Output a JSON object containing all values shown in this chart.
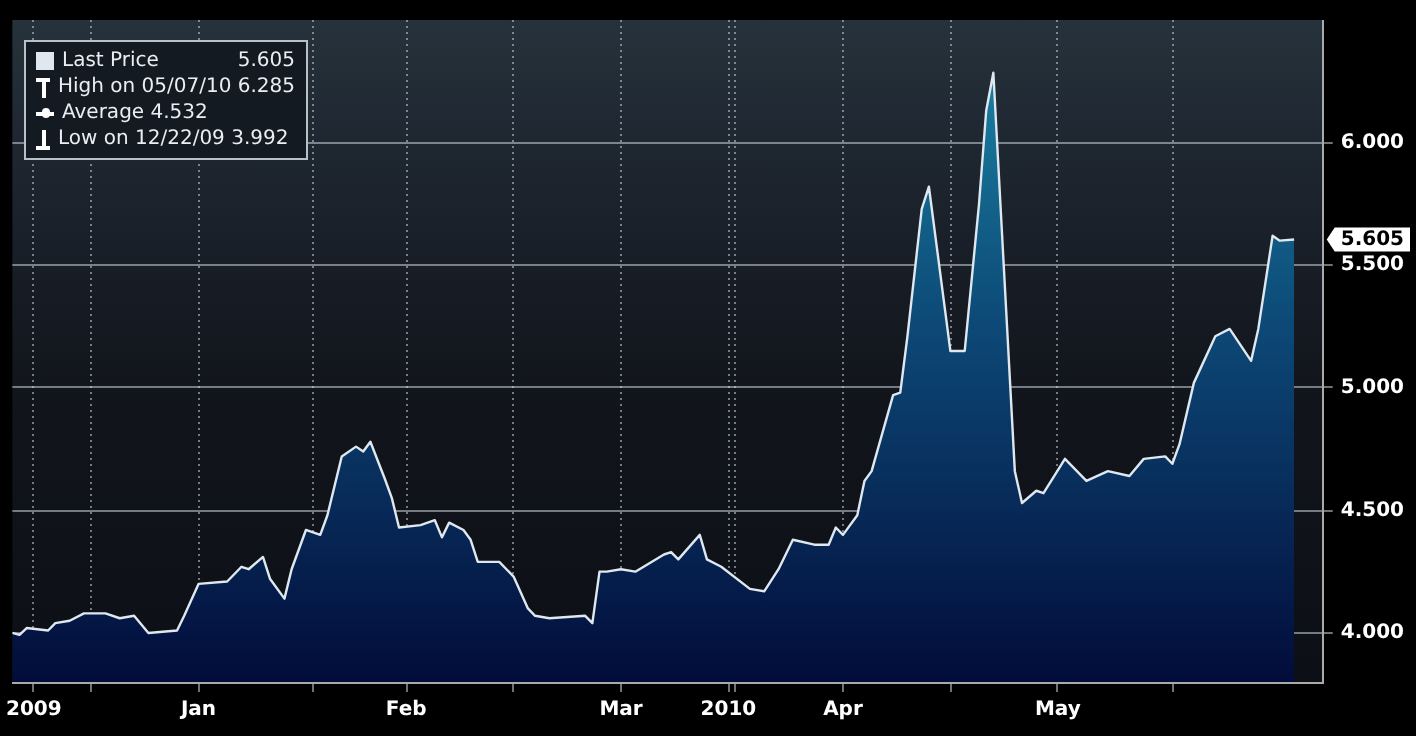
{
  "chart_data": {
    "type": "area",
    "x": [
      "2009-12-21",
      "2009-12-22",
      "2009-12-23",
      "2009-12-26",
      "2009-12-27",
      "2009-12-29",
      "2009-12-31",
      "2010-01-03",
      "2010-01-05",
      "2010-01-07",
      "2010-01-09",
      "2010-01-13",
      "2010-01-14",
      "2010-01-16",
      "2010-01-20",
      "2010-01-22",
      "2010-01-23",
      "2010-01-25",
      "2010-01-26",
      "2010-01-28",
      "2010-01-29",
      "2010-01-31",
      "2010-02-02",
      "2010-02-03",
      "2010-02-05",
      "2010-02-07",
      "2010-02-08",
      "2010-02-09",
      "2010-02-11",
      "2010-02-12",
      "2010-02-13",
      "2010-02-16",
      "2010-02-18",
      "2010-02-19",
      "2010-02-20",
      "2010-02-22",
      "2010-02-23",
      "2010-02-24",
      "2010-02-27",
      "2010-03-01",
      "2010-03-03",
      "2010-03-04",
      "2010-03-06",
      "2010-03-11",
      "2010-03-12",
      "2010-03-13",
      "2010-03-14",
      "2010-03-16",
      "2010-03-18",
      "2010-03-22",
      "2010-03-23",
      "2010-03-24",
      "2010-03-27",
      "2010-03-28",
      "2010-03-30",
      "2010-04-03",
      "2010-04-05",
      "2010-04-07",
      "2010-04-09",
      "2010-04-12",
      "2010-04-14",
      "2010-04-15",
      "2010-04-16",
      "2010-04-18",
      "2010-04-19",
      "2010-04-20",
      "2010-04-23",
      "2010-04-24",
      "2010-04-25",
      "2010-04-27",
      "2010-04-28",
      "2010-05-01",
      "2010-05-03",
      "2010-05-05",
      "2010-05-06",
      "2010-05-07",
      "2010-05-10",
      "2010-05-11",
      "2010-05-13",
      "2010-05-14",
      "2010-05-17",
      "2010-05-20",
      "2010-05-23",
      "2010-05-26",
      "2010-05-28",
      "2010-05-31",
      "2010-06-01",
      "2010-06-02",
      "2010-06-04",
      "2010-06-07",
      "2010-06-09",
      "2010-06-12",
      "2010-06-13",
      "2010-06-15",
      "2010-06-16",
      "2010-06-18"
    ],
    "series": [
      {
        "name": "Last Price",
        "color": "#dfe8ee",
        "values": [
          4.0,
          3.992,
          4.02,
          4.01,
          4.04,
          4.05,
          4.08,
          4.08,
          4.06,
          4.07,
          4.0,
          4.01,
          4.07,
          4.2,
          4.21,
          4.27,
          4.26,
          4.31,
          4.22,
          4.14,
          4.26,
          4.42,
          4.4,
          4.48,
          4.72,
          4.76,
          4.74,
          4.78,
          4.63,
          4.55,
          4.43,
          4.44,
          4.46,
          4.39,
          4.45,
          4.42,
          4.38,
          4.29,
          4.29,
          4.23,
          4.1,
          4.07,
          4.06,
          4.07,
          4.04,
          4.25,
          4.25,
          4.26,
          4.25,
          4.32,
          4.33,
          4.3,
          4.4,
          4.3,
          4.27,
          4.18,
          4.17,
          4.26,
          4.38,
          4.36,
          4.36,
          4.43,
          4.4,
          4.48,
          4.62,
          4.66,
          4.97,
          4.98,
          5.21,
          5.73,
          5.82,
          5.15,
          5.15,
          5.75,
          6.13,
          6.285,
          4.66,
          4.53,
          4.58,
          4.57,
          4.71,
          4.62,
          4.66,
          4.64,
          4.71,
          4.72,
          4.69,
          4.77,
          5.02,
          5.21,
          5.24,
          5.11,
          5.24,
          5.62,
          5.6,
          5.605
        ]
      }
    ],
    "xlim": [
      "2009-12-21",
      "2010-06-22"
    ],
    "xticks": [
      {
        "value": "2009-12-24",
        "label": "2009"
      },
      {
        "value": "2010-01-01",
        "label": null
      },
      {
        "value": "2010-01-16",
        "label": "Jan"
      },
      {
        "value": "2010-02-01",
        "label": null
      },
      {
        "value": "2010-02-14",
        "label": "Feb"
      },
      {
        "value": "2010-03-01",
        "label": null
      },
      {
        "value": "2010-03-16",
        "label": "Mar"
      },
      {
        "value": "2010-03-31",
        "label": "2010"
      },
      {
        "value": "2010-04-01",
        "label": null
      },
      {
        "value": "2010-04-16",
        "label": "Apr"
      },
      {
        "value": "2010-05-01",
        "label": null
      },
      {
        "value": "2010-05-16",
        "label": "May"
      },
      {
        "value": "2010-06-01",
        "label": null
      }
    ],
    "ylim": [
      3.8,
      6.5
    ],
    "yticks": [
      {
        "value": 4,
        "label": "4.000"
      },
      {
        "value": 4.5,
        "label": "4.500"
      },
      {
        "value": 5,
        "label": "5.000"
      },
      {
        "value": 5.5,
        "label": "5.500"
      },
      {
        "value": 6,
        "label": "6.000"
      }
    ],
    "grid": true,
    "legend": "top left",
    "marker": "none",
    "annotations": [
      "5.605",
      "High on 05/07/10 6.285",
      "Average 4.532",
      "Low on 12/22/09 3.992"
    ]
  }
}
